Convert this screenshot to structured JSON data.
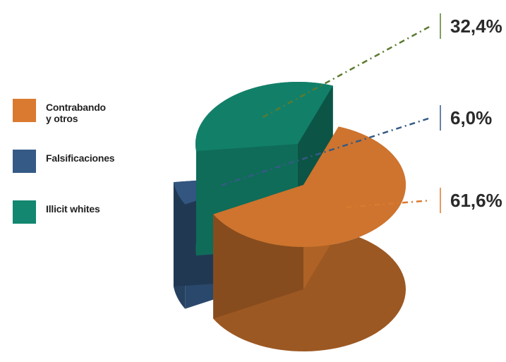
{
  "chart_data": {
    "type": "pie",
    "title": "",
    "categories": [
      "Contrabando\ny otros",
      "Falsificaciones",
      "Illicit whites"
    ],
    "values": [
      61.6,
      6.0,
      32.4
    ],
    "value_labels": [
      "61,6%",
      "6,0%",
      "32,4%"
    ],
    "colors": [
      "#D97A30",
      "#355A86",
      "#13876F"
    ],
    "legend_placement": "left"
  }
}
